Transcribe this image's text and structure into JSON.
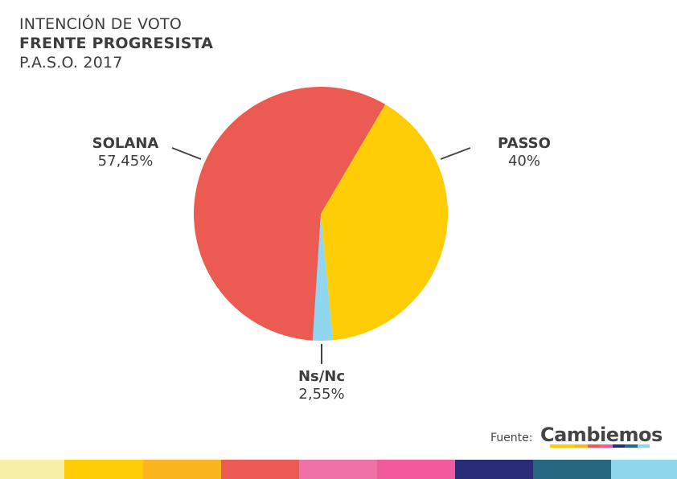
{
  "title": {
    "line1": "INTENCIÓN DE VOTO",
    "line2": "FRENTE PROGRESISTA",
    "line3": "P.A.S.O. 2017"
  },
  "chart_data": {
    "type": "pie",
    "slices": [
      {
        "name": "PASSO",
        "value": 40,
        "label": "40%",
        "color": "#ffcd05"
      },
      {
        "name": "Ns/Nc",
        "value": 2.55,
        "label": "2,55%",
        "color": "#8fd6ee"
      },
      {
        "name": "SOLANA",
        "value": 57.45,
        "label": "57,45%",
        "color": "#ec5b52"
      }
    ]
  },
  "source": {
    "label": "Fuente:",
    "logo": "Cambiemos"
  },
  "colors": {
    "bottom_bar": [
      "#f5f0a6",
      "#ffcd05",
      "#fbb61f",
      "#ec5b52",
      "#ef72a6",
      "#f15a9c",
      "#2b2c77",
      "#286781",
      "#8fd6ee"
    ],
    "logo_stripe": [
      "#ffcd05",
      "#ffcd05",
      "#fbb61f",
      "#ec5b52",
      "#f15a9c",
      "#2b2c77",
      "#286781",
      "#8fd6ee"
    ]
  }
}
